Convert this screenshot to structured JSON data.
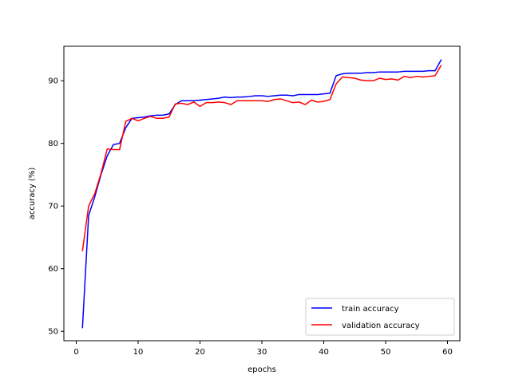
{
  "chart_data": {
    "type": "line",
    "title": "",
    "xlabel": "epochs",
    "ylabel": "accuracy (%)",
    "xlim": [
      -2,
      62
    ],
    "ylim": [
      48.5,
      95.5
    ],
    "xticks": [
      0,
      10,
      20,
      30,
      40,
      50,
      60
    ],
    "yticks": [
      50,
      60,
      70,
      80,
      90
    ],
    "grid": false,
    "legend": "lower-right",
    "x": [
      1,
      2,
      3,
      4,
      5,
      6,
      7,
      8,
      9,
      10,
      11,
      12,
      13,
      14,
      15,
      16,
      17,
      18,
      19,
      20,
      21,
      22,
      23,
      24,
      25,
      26,
      27,
      28,
      29,
      30,
      31,
      32,
      33,
      34,
      35,
      36,
      37,
      38,
      39,
      40,
      41,
      42,
      43,
      44,
      45,
      46,
      47,
      48,
      49,
      50,
      51,
      52,
      53,
      54,
      55,
      56,
      57,
      58,
      59
    ],
    "series": [
      {
        "name": "train accuracy",
        "color": "#0000ff",
        "values": [
          50.5,
          68.5,
          71.5,
          75.0,
          78.0,
          79.8,
          80.0,
          82.5,
          84.0,
          84.1,
          84.2,
          84.4,
          84.5,
          84.5,
          84.7,
          86.2,
          86.8,
          86.8,
          86.8,
          86.9,
          87.0,
          87.1,
          87.2,
          87.4,
          87.3,
          87.4,
          87.4,
          87.5,
          87.6,
          87.6,
          87.5,
          87.6,
          87.7,
          87.7,
          87.6,
          87.8,
          87.8,
          87.8,
          87.8,
          87.9,
          88.0,
          90.8,
          91.1,
          91.2,
          91.2,
          91.2,
          91.3,
          91.3,
          91.4,
          91.4,
          91.4,
          91.4,
          91.5,
          91.5,
          91.5,
          91.5,
          91.6,
          91.6,
          93.4
        ]
      },
      {
        "name": "validation accuracy",
        "color": "#ff0000",
        "values": [
          62.8,
          70.0,
          72.0,
          75.2,
          79.1,
          79.0,
          79.0,
          83.5,
          84.0,
          83.6,
          84.0,
          84.3,
          84.0,
          84.0,
          84.2,
          86.3,
          86.4,
          86.2,
          86.6,
          85.9,
          86.5,
          86.5,
          86.6,
          86.5,
          86.2,
          86.8,
          86.8,
          86.8,
          86.8,
          86.8,
          86.7,
          87.0,
          87.1,
          86.8,
          86.5,
          86.6,
          86.2,
          86.9,
          86.6,
          86.7,
          87.0,
          89.5,
          90.6,
          90.5,
          90.4,
          90.1,
          90.0,
          90.0,
          90.4,
          90.2,
          90.3,
          90.1,
          90.7,
          90.5,
          90.7,
          90.6,
          90.7,
          90.8,
          92.5
        ]
      }
    ]
  }
}
